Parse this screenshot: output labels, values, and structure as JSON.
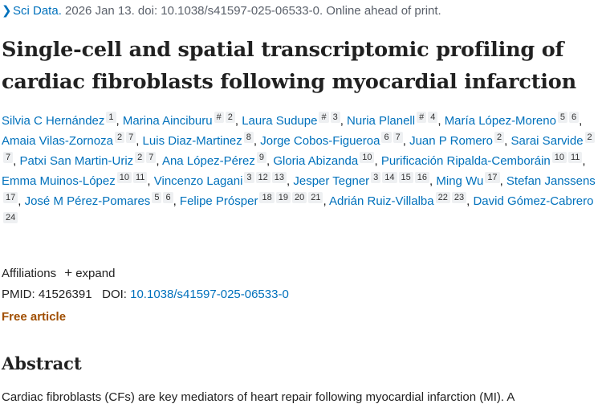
{
  "citation": {
    "journal": "Sci Data.",
    "details": " 2026 Jan 13. doi: 10.1038/s41597-025-06533-0. Online ahead of print."
  },
  "title": "Single-cell and spatial transcriptomic profiling of cardiac fibroblasts following myocardial infarction",
  "authors": [
    {
      "name": "Silvia C Hernández",
      "sups": [
        "1"
      ]
    },
    {
      "name": "Marina Ainciburu",
      "sups": [
        "#",
        "2"
      ]
    },
    {
      "name": "Laura Sudupe",
      "sups": [
        "#",
        "3"
      ]
    },
    {
      "name": "Nuria Planell",
      "sups": [
        "#",
        "4"
      ]
    },
    {
      "name": "María López-Moreno",
      "sups": [
        "5",
        "6"
      ]
    },
    {
      "name": "Amaia Vilas-Zornoza",
      "sups": [
        "2",
        "7"
      ]
    },
    {
      "name": "Luis Diaz-Martinez",
      "sups": [
        "8"
      ]
    },
    {
      "name": "Jorge Cobos-Figueroa",
      "sups": [
        "6",
        "7"
      ]
    },
    {
      "name": "Juan P Romero",
      "sups": [
        "2"
      ]
    },
    {
      "name": "Sarai Sarvide",
      "sups": [
        "2",
        "7"
      ]
    },
    {
      "name": "Patxi San Martin-Uriz",
      "sups": [
        "2",
        "7"
      ]
    },
    {
      "name": "Ana López-Pérez",
      "sups": [
        "9"
      ]
    },
    {
      "name": "Gloria Abizanda",
      "sups": [
        "10"
      ]
    },
    {
      "name": "Purificación Ripalda-Cemboráin",
      "sups": [
        "10",
        "11"
      ]
    },
    {
      "name": "Emma Muinos-López",
      "sups": [
        "10",
        "11"
      ]
    },
    {
      "name": "Vincenzo Lagani",
      "sups": [
        "3",
        "12",
        "13"
      ]
    },
    {
      "name": "Jesper Tegner",
      "sups": [
        "3",
        "14",
        "15",
        "16"
      ]
    },
    {
      "name": "Ming Wu",
      "sups": [
        "17"
      ]
    },
    {
      "name": "Stefan Janssens",
      "sups": [
        "17"
      ]
    },
    {
      "name": "José M Pérez-Pomares",
      "sups": [
        "5",
        "6"
      ]
    },
    {
      "name": "Felipe Prósper",
      "sups": [
        "18",
        "19",
        "20",
        "21"
      ]
    },
    {
      "name": "Adrián Ruiz-Villalba",
      "sups": [
        "22",
        "23"
      ]
    },
    {
      "name": "David Gómez-Cabrero",
      "sups": [
        "24"
      ]
    }
  ],
  "affiliations": {
    "label": "Affiliations",
    "expand_label": "expand"
  },
  "ids": {
    "pmid_label": "PMID:",
    "pmid": "41526391",
    "doi_label": "DOI:",
    "doi": "10.1038/s41597-025-06533-0"
  },
  "free_article": "Free article",
  "abstract": {
    "heading": "Abstract",
    "text": "Cardiac fibroblasts (CFs) are key mediators of heart repair following myocardial infarction (MI). A"
  }
}
